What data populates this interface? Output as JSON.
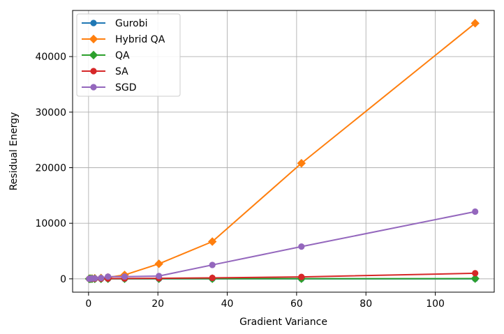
{
  "chart_data": {
    "type": "line",
    "title": "",
    "xlabel": "Gradient Variance",
    "ylabel": "Residual Energy",
    "xlim": [
      -4.6,
      117
    ],
    "ylim": [
      -2400,
      48300
    ],
    "xticks": [
      0,
      20,
      40,
      60,
      80,
      100
    ],
    "yticks": [
      0,
      10000,
      20000,
      30000,
      40000
    ],
    "grid": true,
    "legend_position": "top-left",
    "x": [
      0.2,
      0.5,
      1.0,
      1.8,
      3.6,
      5.6,
      10.4,
      20.3,
      35.7,
      61.4,
      111.5
    ],
    "series": [
      {
        "name": "Gurobi",
        "color": "#1f77b4",
        "marker": "circle",
        "values": [
          0,
          0,
          0,
          0,
          0,
          0,
          0,
          0,
          0,
          0,
          0
        ]
      },
      {
        "name": "Hybrid QA",
        "color": "#ff7f0e",
        "marker": "diamond",
        "values": [
          20,
          40,
          60,
          100,
          150,
          250,
          700,
          2700,
          6700,
          20800,
          46000
        ]
      },
      {
        "name": "QA",
        "color": "#2ca02c",
        "marker": "diamond",
        "values": [
          0,
          5,
          10,
          10,
          15,
          20,
          20,
          25,
          30,
          30,
          40
        ]
      },
      {
        "name": "SA",
        "color": "#d62728",
        "marker": "circle",
        "values": [
          0,
          5,
          10,
          20,
          30,
          40,
          60,
          100,
          180,
          350,
          1000
        ]
      },
      {
        "name": "SGD",
        "color": "#9467bd",
        "marker": "circle",
        "values": [
          10,
          30,
          60,
          100,
          150,
          400,
          400,
          500,
          2500,
          5800,
          12100
        ]
      }
    ]
  }
}
